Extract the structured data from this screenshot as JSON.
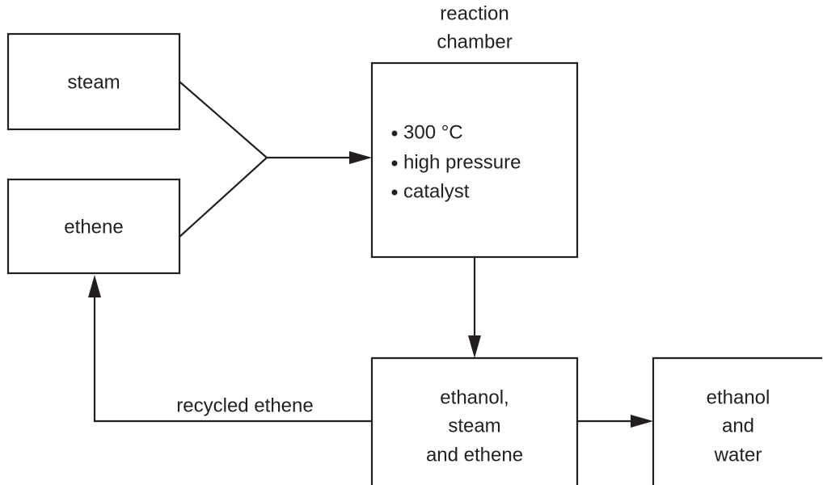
{
  "nodes": [
    {
      "label": [
        "steam"
      ]
    },
    {
      "label": [
        "ethene"
      ]
    },
    {
      "title": [
        "reaction",
        "chamber"
      ],
      "items": [
        "300 °C",
        "high pressure",
        "catalyst"
      ]
    },
    {
      "label": [
        "ethanol,",
        "steam",
        "and ethene"
      ]
    },
    {
      "label": [
        "ethanol",
        "and",
        "water"
      ]
    }
  ],
  "edges": [
    {
      "label": "recycled ethene"
    }
  ]
}
